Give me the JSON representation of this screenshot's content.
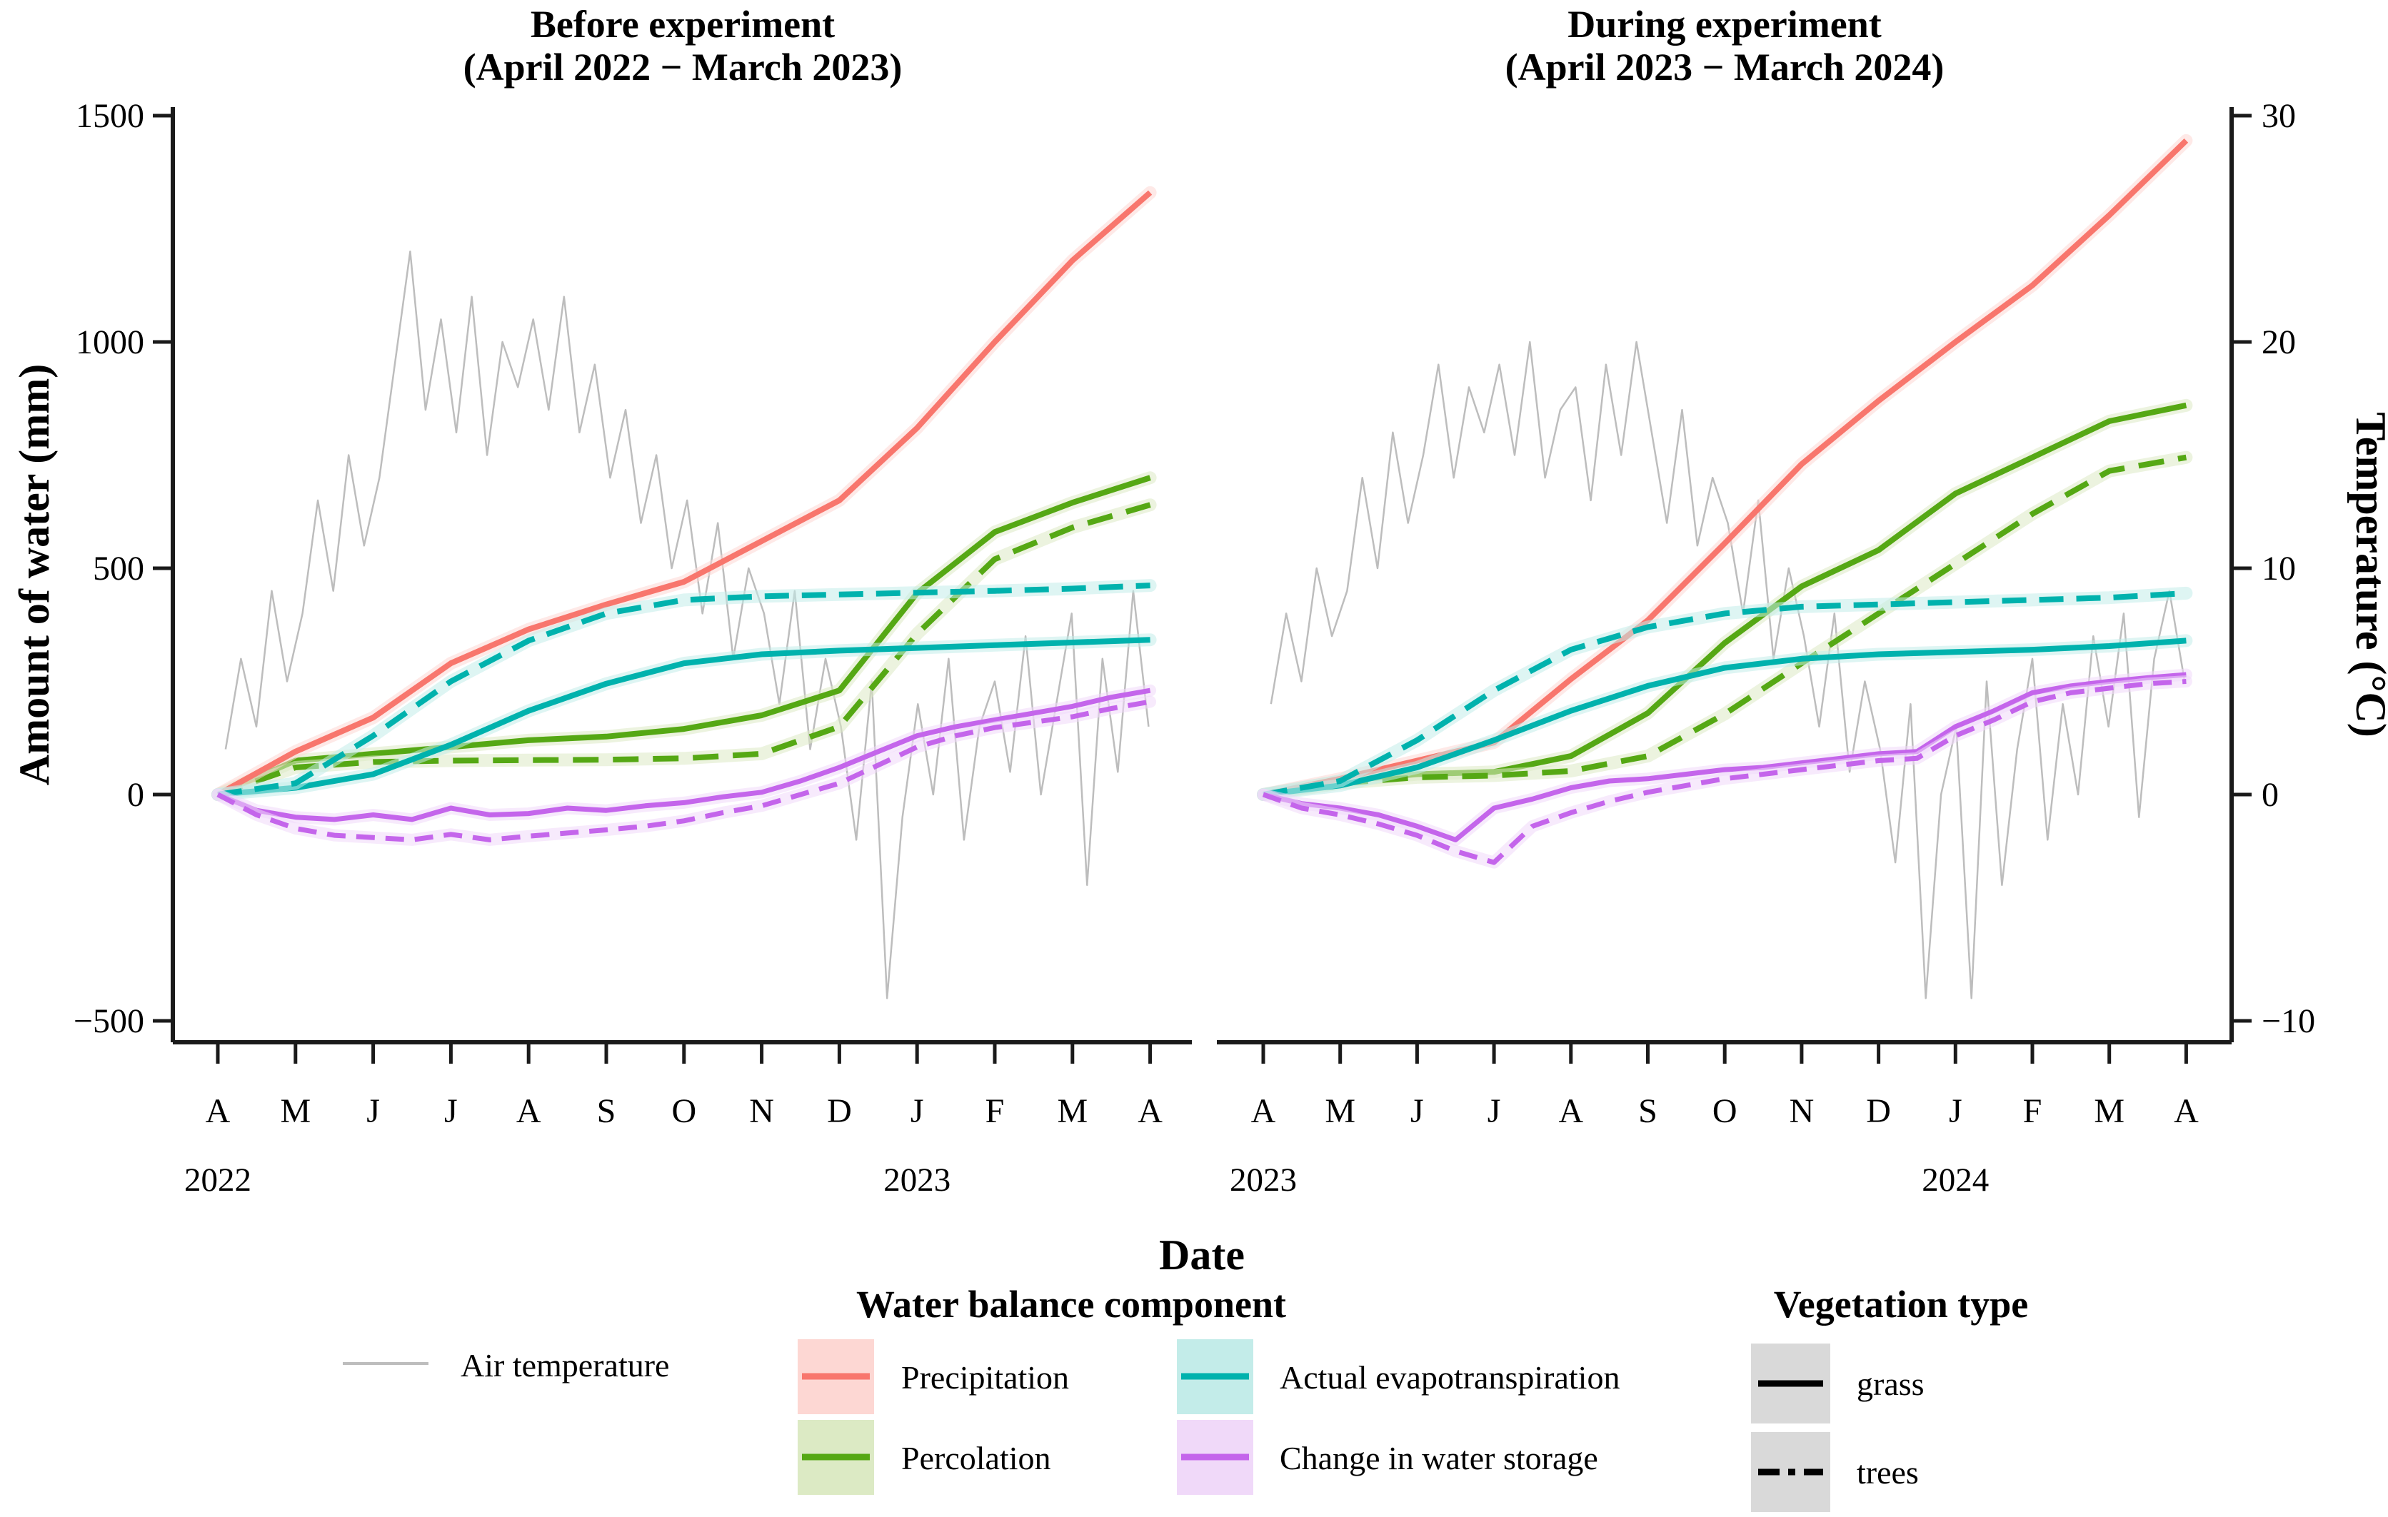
{
  "colors": {
    "precipitation": "#F8766D",
    "percolation": "#55A814",
    "aet": "#00B2AD",
    "storage": "#C465EB",
    "air_temperature": "#BDBDBD",
    "ribbon_precipitation": "#FDD7D3",
    "ribbon_percolation": "#DCEAC4",
    "ribbon_aet": "#C3ECE9",
    "ribbon_storage": "#F0D9F9",
    "vegetation_swatch": "#D9D9D9",
    "vegetation_line": "#000000",
    "axis": "#1A1A1A"
  },
  "axes": {
    "y_left": {
      "label": "Amount of water (mm)",
      "tick_labels": [
        "1500",
        "1000",
        "500",
        "0",
        "−500"
      ],
      "tick_values": [
        1500,
        1000,
        500,
        0,
        -500
      ],
      "range": [
        -500,
        1500
      ]
    },
    "y_right": {
      "label": "Temperature (°C)",
      "tick_labels": [
        "30",
        "20",
        "10",
        "0",
        "−10"
      ],
      "tick_values": [
        30,
        20,
        10,
        0,
        -10
      ],
      "range": [
        -10,
        30
      ]
    },
    "x": {
      "label": "Date"
    }
  },
  "legend": {
    "air": {
      "label": "Air temperature"
    },
    "water_balance": {
      "title": "Water balance component",
      "items": [
        {
          "label": "Precipitation",
          "key": "precipitation"
        },
        {
          "label": "Percolation",
          "key": "percolation"
        },
        {
          "label": "Actual evapotranspiration",
          "key": "aet"
        },
        {
          "label": "Change in water storage",
          "key": "storage"
        }
      ]
    },
    "vegetation": {
      "title": "Vegetation type",
      "items": [
        {
          "label": "grass",
          "line": "solid"
        },
        {
          "label": "trees",
          "line": "dash-dot"
        }
      ]
    }
  },
  "chart_data": [
    {
      "type": "line",
      "title_line1": "Before experiment",
      "title_line2": "(April 2022 − March 2023)",
      "x_unit": "months since 1 April 2022",
      "x_tick_labels": [
        "A",
        "M",
        "J",
        "J",
        "A",
        "S",
        "O",
        "N",
        "D",
        "J",
        "F",
        "M",
        "A"
      ],
      "year_labels": [
        {
          "label": "2022",
          "at_month": 0
        },
        {
          "label": "2023",
          "at_month": 9
        }
      ],
      "ylim_water_mm": [
        -500,
        1500
      ],
      "ylim_temp_c": [
        -10,
        30
      ],
      "grid": false,
      "series": [
        {
          "name": "Air temperature",
          "component": "air_temperature",
          "vegetation": null,
          "axis": "temp",
          "style": "thin",
          "x_start": 0.1,
          "x_step": 0.198,
          "values": [
            2,
            6,
            3,
            9,
            5,
            8,
            13,
            9,
            15,
            11,
            14,
            19,
            24,
            17,
            21,
            16,
            22,
            15,
            20,
            18,
            21,
            17,
            22,
            16,
            19,
            14,
            17,
            12,
            15,
            10,
            13,
            8,
            12,
            6,
            10,
            8,
            4,
            9,
            2,
            6,
            3,
            -2,
            5,
            -9,
            -1,
            4,
            0,
            6,
            -2,
            3,
            5,
            1,
            7,
            0,
            4,
            8,
            -4,
            6,
            1,
            9,
            3
          ]
        },
        {
          "name": "Percolation – grass",
          "component": "percolation",
          "vegetation": "grass",
          "axis": "water",
          "style": "solid",
          "x_start": 0,
          "x_step": 1,
          "values": [
            0,
            75,
            90,
            105,
            120,
            128,
            145,
            175,
            230,
            445,
            580,
            645,
            700
          ]
        },
        {
          "name": "Percolation – trees",
          "component": "percolation",
          "vegetation": "trees",
          "axis": "water",
          "style": "dashed",
          "x_start": 0,
          "x_step": 1,
          "values": [
            0,
            60,
            72,
            75,
            76,
            77,
            80,
            90,
            150,
            355,
            520,
            590,
            640
          ]
        },
        {
          "name": "Precipitation",
          "component": "precipitation",
          "vegetation": null,
          "axis": "water",
          "style": "solid",
          "x_start": 0,
          "x_step": 1,
          "values": [
            0,
            95,
            170,
            290,
            365,
            420,
            470,
            560,
            650,
            810,
            1000,
            1180,
            1330
          ]
        },
        {
          "name": "Actual evapotranspiration – grass",
          "component": "aet",
          "vegetation": "grass",
          "axis": "water",
          "style": "solid",
          "x_start": 0,
          "x_step": 1,
          "values": [
            0,
            15,
            45,
            110,
            185,
            245,
            290,
            310,
            318,
            324,
            330,
            336,
            342
          ]
        },
        {
          "name": "Actual evapotranspiration – trees",
          "component": "aet",
          "vegetation": "trees",
          "axis": "water",
          "style": "dashed",
          "x_start": 0,
          "x_step": 1,
          "values": [
            0,
            25,
            130,
            250,
            340,
            400,
            430,
            438,
            442,
            446,
            450,
            455,
            462
          ]
        },
        {
          "name": "Change in water storage – grass",
          "component": "storage",
          "vegetation": "grass",
          "axis": "water",
          "style": "solid",
          "x_start": 0,
          "x_step": 0.5,
          "values": [
            0,
            -35,
            -50,
            -55,
            -45,
            -55,
            -30,
            -45,
            -42,
            -30,
            -35,
            -25,
            -18,
            -5,
            5,
            30,
            60,
            95,
            130,
            150,
            165,
            180,
            195,
            215,
            230
          ]
        },
        {
          "name": "Change in water storage – trees",
          "component": "storage",
          "vegetation": "trees",
          "axis": "water",
          "style": "dashed",
          "x_start": 0,
          "x_step": 0.5,
          "values": [
            0,
            -45,
            -75,
            -90,
            -95,
            -100,
            -88,
            -100,
            -92,
            -85,
            -78,
            -70,
            -58,
            -40,
            -25,
            0,
            25,
            65,
            105,
            130,
            148,
            160,
            172,
            190,
            205
          ]
        }
      ]
    },
    {
      "type": "line",
      "title_line1": "During experiment",
      "title_line2": "(April 2023 − March 2024)",
      "x_unit": "months since 1 April 2023",
      "x_tick_labels": [
        "A",
        "M",
        "J",
        "J",
        "A",
        "S",
        "O",
        "N",
        "D",
        "J",
        "F",
        "M",
        "A"
      ],
      "year_labels": [
        {
          "label": "2023",
          "at_month": 0
        },
        {
          "label": "2024",
          "at_month": 9
        }
      ],
      "ylim_water_mm": [
        -500,
        1500
      ],
      "ylim_temp_c": [
        -10,
        30
      ],
      "grid": false,
      "series": [
        {
          "name": "Air temperature",
          "component": "air_temperature",
          "vegetation": null,
          "axis": "temp",
          "style": "thin",
          "x_start": 0.1,
          "x_step": 0.198,
          "values": [
            4,
            8,
            5,
            10,
            7,
            9,
            14,
            10,
            16,
            12,
            15,
            19,
            14,
            18,
            16,
            19,
            15,
            20,
            14,
            17,
            18,
            13,
            19,
            15,
            20,
            16,
            12,
            17,
            11,
            14,
            12,
            8,
            13,
            6,
            10,
            7,
            3,
            8,
            1,
            5,
            2,
            -3,
            4,
            -9,
            0,
            3,
            -9,
            5,
            -4,
            2,
            6,
            -2,
            4,
            0,
            7,
            3,
            8,
            -1,
            6,
            9,
            5
          ]
        },
        {
          "name": "Percolation – grass",
          "component": "percolation",
          "vegetation": "grass",
          "axis": "water",
          "style": "solid",
          "x_start": 0,
          "x_step": 1,
          "values": [
            0,
            30,
            45,
            50,
            85,
            180,
            335,
            460,
            540,
            665,
            745,
            825,
            860
          ]
        },
        {
          "name": "Percolation – trees",
          "component": "percolation",
          "vegetation": "trees",
          "axis": "water",
          "style": "dashed",
          "x_start": 0,
          "x_step": 1,
          "values": [
            0,
            25,
            38,
            42,
            52,
            85,
            178,
            290,
            400,
            510,
            620,
            715,
            745
          ]
        },
        {
          "name": "Precipitation",
          "component": "precipitation",
          "vegetation": null,
          "axis": "water",
          "style": "solid",
          "x_start": 0,
          "x_step": 1,
          "values": [
            0,
            35,
            75,
            115,
            255,
            385,
            555,
            730,
            870,
            1000,
            1125,
            1280,
            1445
          ]
        },
        {
          "name": "Actual evapotranspiration – grass",
          "component": "aet",
          "vegetation": "grass",
          "axis": "water",
          "style": "solid",
          "x_start": 0,
          "x_step": 1,
          "values": [
            0,
            20,
            60,
            120,
            185,
            240,
            280,
            300,
            310,
            315,
            320,
            328,
            340
          ]
        },
        {
          "name": "Actual evapotranspiration – trees",
          "component": "aet",
          "vegetation": "trees",
          "axis": "water",
          "style": "dashed",
          "x_start": 0,
          "x_step": 1,
          "values": [
            0,
            30,
            120,
            230,
            320,
            370,
            400,
            415,
            420,
            425,
            430,
            435,
            445
          ]
        },
        {
          "name": "Change in water storage – grass",
          "component": "storage",
          "vegetation": "grass",
          "axis": "water",
          "style": "solid",
          "x_start": 0,
          "x_step": 0.5,
          "values": [
            0,
            -20,
            -30,
            -45,
            -70,
            -100,
            -30,
            -10,
            15,
            30,
            35,
            45,
            55,
            60,
            70,
            80,
            90,
            95,
            150,
            185,
            225,
            240,
            250,
            258,
            265
          ]
        },
        {
          "name": "Change in water storage – trees",
          "component": "storage",
          "vegetation": "trees",
          "axis": "water",
          "style": "dashed",
          "x_start": 0,
          "x_step": 0.5,
          "values": [
            0,
            -30,
            -45,
            -65,
            -90,
            -125,
            -150,
            -70,
            -40,
            -15,
            5,
            20,
            35,
            45,
            55,
            65,
            75,
            80,
            130,
            165,
            205,
            225,
            235,
            245,
            250
          ]
        }
      ]
    }
  ]
}
